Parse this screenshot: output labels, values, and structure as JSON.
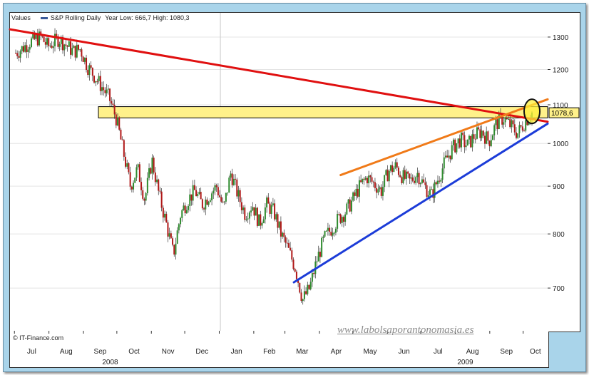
{
  "legend": {
    "values_label": "Values",
    "series_name": "S&P Rolling Daily",
    "range_text": "Year Low: 666,7 High: 1080,3"
  },
  "credit": "© IT-Finance.com",
  "watermark": "www.labolsaporantonomasia.es",
  "colors": {
    "background": "#a9d4ea",
    "up_candle": "#2e8b2e",
    "down_candle": "#b01818",
    "resistance_line": "#e01010",
    "support_line": "#1c3cd8",
    "upper_channel": "#f07a18",
    "highlight_band": "#fff18a",
    "circle": "#111111"
  },
  "chart_data": {
    "type": "candlestick",
    "title": "",
    "xlabel": "",
    "ylabel": "",
    "yscale": "log",
    "ylim": [
      630,
      1380
    ],
    "y_ticks": [
      700,
      800,
      900,
      1000,
      1100,
      1200,
      1300
    ],
    "x_month_labels": [
      "Jul",
      "Aug",
      "Sep",
      "Oct",
      "Nov",
      "Dec",
      "Jan",
      "Feb",
      "Mar",
      "Apr",
      "May",
      "Jun",
      "Jul",
      "Aug",
      "Sep",
      "Oct"
    ],
    "x_year_labels": [
      "2008",
      "2009"
    ],
    "last_value_label": "1078,6",
    "year_low": 666.7,
    "year_high": 1080.3,
    "price_path": [
      [
        0,
        1250
      ],
      [
        2,
        1265
      ],
      [
        4,
        1285
      ],
      [
        7,
        1300
      ],
      [
        9,
        1270
      ],
      [
        12,
        1295
      ],
      [
        14,
        1275
      ],
      [
        16,
        1255
      ],
      [
        18,
        1262
      ],
      [
        20,
        1210
      ],
      [
        22,
        1180
      ],
      [
        24,
        1150
      ],
      [
        26,
        1120
      ],
      [
        28,
        1065
      ],
      [
        30,
        980
      ],
      [
        32,
        900
      ],
      [
        34,
        940
      ],
      [
        36,
        870
      ],
      [
        38,
        960
      ],
      [
        40,
        880
      ],
      [
        42,
        820
      ],
      [
        44,
        760
      ],
      [
        46,
        840
      ],
      [
        48,
        870
      ],
      [
        50,
        890
      ],
      [
        52,
        860
      ],
      [
        54,
        880
      ],
      [
        56,
        900
      ],
      [
        58,
        850
      ],
      [
        60,
        930
      ],
      [
        62,
        880
      ],
      [
        64,
        840
      ],
      [
        66,
        860
      ],
      [
        68,
        820
      ],
      [
        70,
        860
      ],
      [
        72,
        845
      ],
      [
        74,
        800
      ],
      [
        76,
        770
      ],
      [
        78,
        735
      ],
      [
        80,
        680
      ],
      [
        82,
        700
      ],
      [
        84,
        750
      ],
      [
        86,
        790
      ],
      [
        88,
        810
      ],
      [
        90,
        830
      ],
      [
        92,
        845
      ],
      [
        94,
        870
      ],
      [
        96,
        900
      ],
      [
        98,
        920
      ],
      [
        100,
        905
      ],
      [
        102,
        890
      ],
      [
        104,
        935
      ],
      [
        106,
        945
      ],
      [
        108,
        920
      ],
      [
        110,
        910
      ],
      [
        112,
        930
      ],
      [
        114,
        900
      ],
      [
        116,
        880
      ],
      [
        118,
        920
      ],
      [
        120,
        960
      ],
      [
        122,
        990
      ],
      [
        124,
        1010
      ],
      [
        126,
        995
      ],
      [
        128,
        1020
      ],
      [
        130,
        1030
      ],
      [
        132,
        1005
      ],
      [
        134,
        1050
      ],
      [
        136,
        1065
      ],
      [
        138,
        1045
      ],
      [
        140,
        1025
      ],
      [
        142,
        1055
      ],
      [
        144,
        1078.6
      ]
    ],
    "trendlines": [
      {
        "name": "resistance",
        "points": [
          [
            "2008-06-27",
            1325
          ],
          [
            "2009-10-23",
            1055
          ]
        ]
      },
      {
        "name": "support",
        "points": [
          [
            "2009-03-09",
            710
          ],
          [
            "2009-10-23",
            1050
          ]
        ]
      },
      {
        "name": "upper channel",
        "points": [
          [
            "2009-04-20",
            925
          ],
          [
            "2009-10-23",
            1115
          ]
        ]
      }
    ],
    "highlight_band": [
      1065,
      1095
    ]
  }
}
